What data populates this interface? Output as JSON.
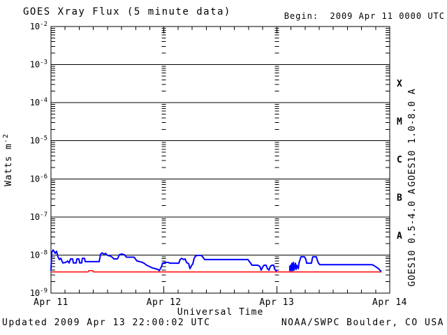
{
  "header": {
    "title": "GOES Xray Flux (5 minute data)",
    "begin_label": "Begin:  2009 Apr 11 0000 UTC"
  },
  "footer": {
    "updated": "Updated 2009 Apr 13 22:00:02 UTC",
    "source": "NOAA/SWPC Boulder, CO USA"
  },
  "colors": {
    "axis": "#000000",
    "long_wave": "#ff0000",
    "short_wave": "#0000ff",
    "background": "#ffffff"
  },
  "chart_data": {
    "type": "line",
    "title": "GOES Xray Flux (5 minute data)",
    "xlabel": "Universal Time",
    "ylabel": "Watts m^-2",
    "x_axis": {
      "range_days": [
        0,
        3
      ],
      "tick_labels": [
        "Apr 11",
        "Apr 12",
        "Apr 13",
        "Apr 14"
      ],
      "minor_tick_hours": 3
    },
    "y_axis": {
      "scale": "log",
      "log_range": [
        -9,
        -2
      ],
      "tick_exponents": [
        -2,
        -3,
        -4,
        -5,
        -6,
        -7,
        -8,
        -9
      ]
    },
    "grid": {
      "horizontal_decade_lines": true,
      "vertical_day_lines_dotted": true
    },
    "flare_classes": [
      {
        "label": "X",
        "log_center": -3.5
      },
      {
        "label": "M",
        "log_center": -4.5
      },
      {
        "label": "C",
        "log_center": -5.5
      },
      {
        "label": "B",
        "log_center": -6.5
      },
      {
        "label": "A",
        "log_center": -7.5
      }
    ],
    "series": [
      {
        "name": "GOES10 1.0-8.0 A",
        "color": "#ff0000",
        "stroke_width": 1.5,
        "segments": [
          [
            [
              0,
              3.6e-09
            ],
            [
              0.33,
              3.6e-09
            ],
            [
              0.335,
              3.9e-09
            ],
            [
              0.37,
              3.9e-09
            ],
            [
              0.375,
              3.6e-09
            ],
            [
              2.926,
              3.6e-09
            ]
          ]
        ]
      },
      {
        "name": "GOES10 0.5-4.0 A",
        "color": "#0000ff",
        "stroke_width": 2,
        "segments": [
          [
            [
              0,
              3.9e-09
            ],
            [
              0.006,
              1.16e-08
            ],
            [
              0.019,
              1.37e-08
            ],
            [
              0.037,
              1.11e-08
            ],
            [
              0.049,
              1.26e-08
            ],
            [
              0.062,
              9e-09
            ],
            [
              0.074,
              7.6e-09
            ],
            [
              0.087,
              8.2e-09
            ],
            [
              0.105,
              6.2e-09
            ],
            [
              0.13,
              6.4e-09
            ],
            [
              0.148,
              7e-09
            ],
            [
              0.161,
              6.2e-09
            ],
            [
              0.173,
              7.9e-09
            ],
            [
              0.192,
              7.9e-09
            ],
            [
              0.198,
              6.2e-09
            ],
            [
              0.223,
              6.2e-09
            ],
            [
              0.229,
              7.9e-09
            ],
            [
              0.247,
              7.9e-09
            ],
            [
              0.254,
              6.2e-09
            ],
            [
              0.272,
              6.2e-09
            ],
            [
              0.278,
              8.2e-09
            ],
            [
              0.297,
              8.2e-09
            ],
            [
              0.303,
              6.7e-09
            ],
            [
              0.322,
              6.7e-09
            ],
            [
              0.427,
              6.7e-09
            ],
            [
              0.439,
              1.05e-08
            ],
            [
              0.452,
              1.14e-08
            ],
            [
              0.47,
              1.05e-08
            ],
            [
              0.483,
              1.11e-08
            ],
            [
              0.501,
              9.8e-09
            ],
            [
              0.526,
              9.4e-09
            ],
            [
              0.544,
              8.7e-09
            ],
            [
              0.557,
              7.9e-09
            ],
            [
              0.588,
              7.9e-09
            ],
            [
              0.606,
              1.02e-08
            ],
            [
              0.625,
              1.06e-08
            ],
            [
              0.65,
              1.02e-08
            ],
            [
              0.668,
              8.8e-09
            ],
            [
              0.736,
              8.8e-09
            ],
            [
              0.761,
              7e-09
            ],
            [
              0.798,
              6.6e-09
            ],
            [
              0.823,
              6.1e-09
            ],
            [
              0.847,
              5.4e-09
            ],
            [
              0.872,
              5e-09
            ],
            [
              0.897,
              4.6e-09
            ],
            [
              0.922,
              4.4e-09
            ],
            [
              0.946,
              4.2e-09
            ],
            [
              0.959,
              3.9e-09
            ],
            [
              0.977,
              4.8e-09
            ],
            [
              0.99,
              6.2e-09
            ],
            [
              1.008,
              6.4e-09
            ],
            [
              1.039,
              6.4e-09
            ],
            [
              1.052,
              6.1e-09
            ],
            [
              1.132,
              6.1e-09
            ],
            [
              1.144,
              7.6e-09
            ],
            [
              1.157,
              8.2e-09
            ],
            [
              1.175,
              7.6e-09
            ],
            [
              1.188,
              7.9e-09
            ],
            [
              1.2,
              6.4e-09
            ],
            [
              1.219,
              5.9e-09
            ],
            [
              1.231,
              4.4e-09
            ],
            [
              1.243,
              5.2e-09
            ],
            [
              1.256,
              5.9e-09
            ],
            [
              1.268,
              8.2e-09
            ],
            [
              1.28,
              9.4e-09
            ],
            [
              1.299,
              9.8e-09
            ],
            [
              1.33,
              9.8e-09
            ],
            [
              1.342,
              9e-09
            ],
            [
              1.361,
              7.6e-09
            ],
            [
              1.744,
              7.6e-09
            ],
            [
              1.763,
              6.4e-09
            ],
            [
              1.781,
              5.4e-09
            ],
            [
              1.831,
              5.4e-09
            ],
            [
              1.85,
              5e-09
            ],
            [
              1.862,
              4e-09
            ],
            [
              1.874,
              4.8e-09
            ],
            [
              1.887,
              5.4e-09
            ],
            [
              1.905,
              5.4e-09
            ],
            [
              1.917,
              4.4e-09
            ],
            [
              1.93,
              4e-09
            ],
            [
              1.942,
              5e-09
            ],
            [
              1.955,
              5.4e-09
            ],
            [
              1.973,
              5.4e-09
            ],
            [
              1.979,
              4.4e-09
            ],
            [
              1.992,
              3.9e-09
            ],
            [
              2.004,
              3.9e-09
            ]
          ],
          [
            [
              2.115,
              5.2e-09
            ],
            [
              2.115,
              3.9e-09
            ],
            [
              2.122,
              5.4e-09
            ],
            [
              2.128,
              3.9e-09
            ],
            [
              2.134,
              6.1e-09
            ],
            [
              2.14,
              3.9e-09
            ],
            [
              2.147,
              6.4e-09
            ],
            [
              2.153,
              4e-09
            ],
            [
              2.165,
              6.1e-09
            ],
            [
              2.171,
              4.2e-09
            ],
            [
              2.177,
              5.4e-09
            ],
            [
              2.19,
              4.4e-09
            ],
            [
              2.196,
              6.1e-09
            ],
            [
              2.208,
              7.9e-09
            ],
            [
              2.214,
              9e-09
            ],
            [
              2.245,
              9e-09
            ],
            [
              2.258,
              7.6e-09
            ],
            [
              2.264,
              6.1e-09
            ],
            [
              2.307,
              6.1e-09
            ],
            [
              2.313,
              7.6e-09
            ],
            [
              2.319,
              9e-09
            ],
            [
              2.35,
              9e-09
            ],
            [
              2.357,
              7.6e-09
            ],
            [
              2.369,
              6.1e-09
            ],
            [
              2.381,
              5.6e-09
            ],
            [
              2.394,
              5.6e-09
            ],
            [
              2.845,
              5.6e-09
            ],
            [
              2.864,
              5.2e-09
            ],
            [
              2.882,
              4.8e-09
            ],
            [
              2.901,
              4.4e-09
            ],
            [
              2.913,
              4e-09
            ],
            [
              2.926,
              3.7e-09
            ]
          ]
        ]
      }
    ]
  }
}
